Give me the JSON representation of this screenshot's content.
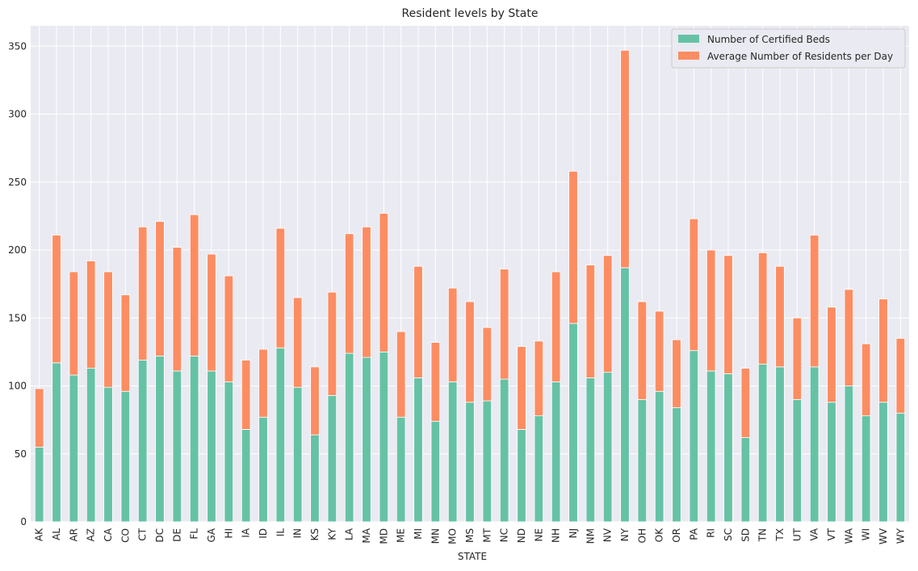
{
  "chart_data": {
    "type": "bar",
    "stacked": true,
    "title": "Resident levels by State",
    "xlabel": "STATE",
    "ylabel": "",
    "ylim": [
      0,
      365
    ],
    "yticks": [
      0,
      50,
      100,
      150,
      200,
      250,
      300,
      350
    ],
    "grid": true,
    "legend_position": "top-right",
    "categories": [
      "AK",
      "AL",
      "AR",
      "AZ",
      "CA",
      "CO",
      "CT",
      "DC",
      "DE",
      "FL",
      "GA",
      "HI",
      "IA",
      "ID",
      "IL",
      "IN",
      "KS",
      "KY",
      "LA",
      "MA",
      "MD",
      "ME",
      "MI",
      "MN",
      "MO",
      "MS",
      "MT",
      "NC",
      "ND",
      "NE",
      "NH",
      "NJ",
      "NM",
      "NV",
      "NY",
      "OH",
      "OK",
      "OR",
      "PA",
      "RI",
      "SC",
      "SD",
      "TN",
      "TX",
      "UT",
      "VA",
      "VT",
      "WA",
      "WI",
      "WV",
      "WY"
    ],
    "series": [
      {
        "name": "Number of Certified Beds",
        "color": "#66c2a5",
        "values": [
          55,
          117,
          108,
          113,
          99,
          96,
          119,
          122,
          111,
          122,
          111,
          103,
          68,
          77,
          128,
          99,
          64,
          93,
          124,
          121,
          125,
          77,
          106,
          74,
          103,
          88,
          89,
          105,
          68,
          78,
          103,
          146,
          106,
          110,
          187,
          90,
          96,
          84,
          126,
          111,
          109,
          62,
          116,
          114,
          90,
          114,
          88,
          100,
          78,
          88,
          80
        ]
      },
      {
        "name": "Average Number of Residents per Day",
        "color": "#fc8d62",
        "values": [
          43,
          94,
          76,
          79,
          85,
          71,
          98,
          99,
          91,
          104,
          86,
          78,
          51,
          50,
          88,
          66,
          50,
          76,
          88,
          96,
          102,
          63,
          82,
          58,
          69,
          74,
          54,
          81,
          61,
          55,
          81,
          112,
          83,
          86,
          160,
          72,
          59,
          50,
          97,
          89,
          87,
          51,
          82,
          74,
          60,
          97,
          70,
          71,
          53,
          76,
          55
        ]
      }
    ]
  }
}
